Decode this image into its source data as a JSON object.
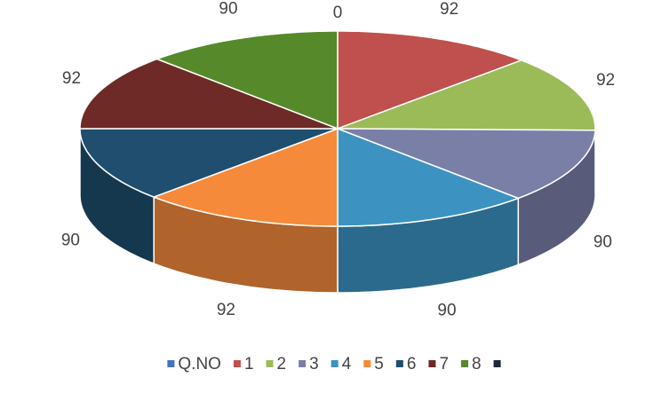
{
  "chart_data": {
    "type": "pie3d",
    "categories": [
      "Q.NO",
      "1",
      "2",
      "3",
      "4",
      "5",
      "6",
      "7",
      "8",
      null
    ],
    "values": [
      0,
      92,
      92,
      90,
      90,
      92,
      90,
      92,
      90,
      null
    ],
    "colors": [
      "#4472c4",
      "#c0504d",
      "#9bbb59",
      "#7a7fa8",
      "#3c93c2",
      "#f58a3a",
      "#1f4e6e",
      "#6e2a26",
      "#56892a",
      "#1c2838"
    ],
    "legend": "bottom"
  }
}
